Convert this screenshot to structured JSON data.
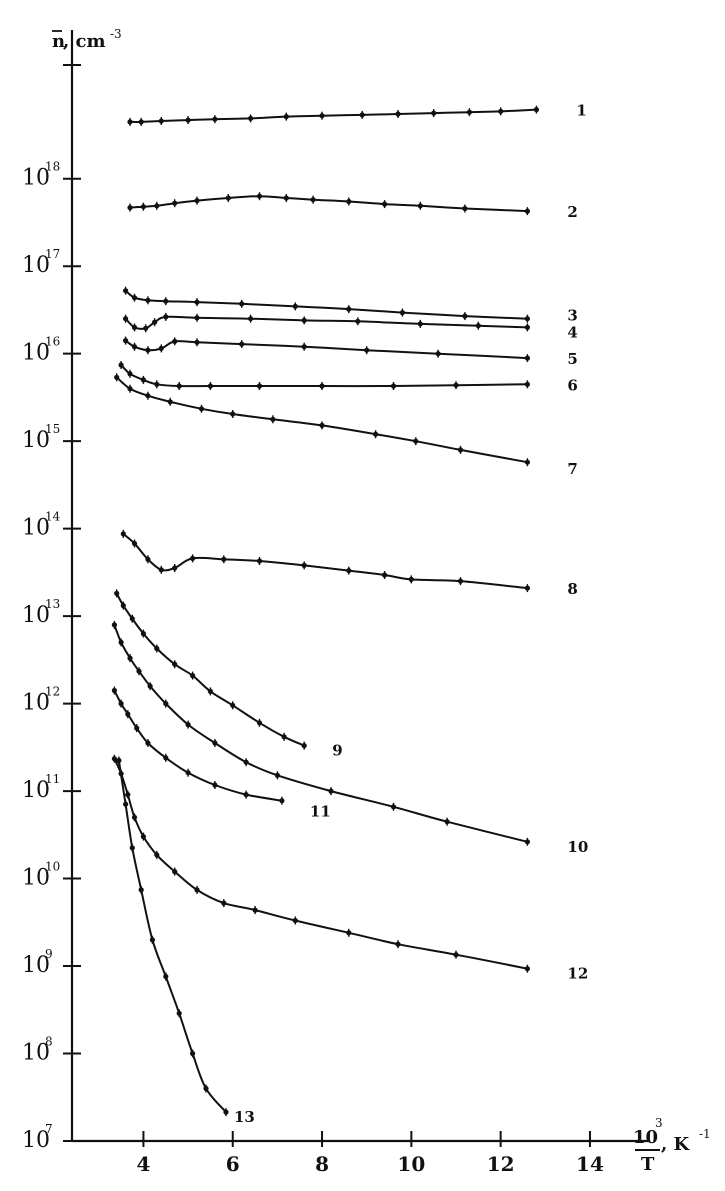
{
  "chart_data": {
    "type": "scatter",
    "title": "",
    "xlabel": {
      "num": "10",
      "num_exp": "3",
      "den": "T",
      "unit": ", K",
      "unit_exp": "-1"
    },
    "ylabel": {
      "var": "n",
      "unit": ", cm",
      "unit_exp": "-3"
    },
    "xlim": [
      2.4,
      15.3
    ],
    "ylim_log10": [
      7,
      19.7
    ],
    "y_scale": "log",
    "x_ticks": [
      4,
      6,
      8,
      10,
      12,
      14
    ],
    "x_tick_labels": [
      "4",
      "6",
      "8",
      "10",
      "12",
      "14"
    ],
    "y_tick_labels": [
      {
        "exp": 7,
        "base": "10",
        "sup": "7"
      },
      {
        "exp": 8,
        "base": "10",
        "sup": "8"
      },
      {
        "exp": 9,
        "base": "10",
        "sup": "9"
      },
      {
        "exp": 10,
        "base": "10",
        "sup": "10"
      },
      {
        "exp": 11,
        "base": "10",
        "sup": "11"
      },
      {
        "exp": 12,
        "base": "10",
        "sup": "12"
      },
      {
        "exp": 13,
        "base": "10",
        "sup": "13"
      },
      {
        "exp": 14,
        "base": "10",
        "sup": "14"
      },
      {
        "exp": 15,
        "base": "10",
        "sup": "15"
      },
      {
        "exp": 16,
        "base": "10",
        "sup": "16"
      },
      {
        "exp": 17,
        "base": "10",
        "sup": "17"
      },
      {
        "exp": 18,
        "base": "10",
        "sup": "18"
      }
    ],
    "series": [
      {
        "label": "1",
        "points": [
          [
            3.7,
            18.65
          ],
          [
            3.95,
            18.65
          ],
          [
            4.4,
            18.66
          ],
          [
            5.0,
            18.67
          ],
          [
            5.6,
            18.68
          ],
          [
            6.4,
            18.69
          ],
          [
            7.2,
            18.71
          ],
          [
            8.0,
            18.72
          ],
          [
            8.9,
            18.73
          ],
          [
            9.7,
            18.74
          ],
          [
            10.5,
            18.75
          ],
          [
            11.3,
            18.76
          ],
          [
            12.0,
            18.77
          ],
          [
            12.8,
            18.79
          ]
        ]
      },
      {
        "label": "2",
        "points": [
          [
            3.7,
            17.67
          ],
          [
            4.0,
            17.68
          ],
          [
            4.3,
            17.69
          ],
          [
            4.7,
            17.72
          ],
          [
            5.2,
            17.75
          ],
          [
            5.9,
            17.78
          ],
          [
            6.6,
            17.8
          ],
          [
            7.2,
            17.78
          ],
          [
            7.8,
            17.76
          ],
          [
            8.6,
            17.74
          ],
          [
            9.4,
            17.71
          ],
          [
            10.2,
            17.69
          ],
          [
            11.2,
            17.66
          ],
          [
            12.6,
            17.63
          ]
        ]
      },
      {
        "label": "3",
        "points": [
          [
            3.6,
            16.72
          ],
          [
            3.8,
            16.64
          ],
          [
            4.1,
            16.61
          ],
          [
            4.5,
            16.6
          ],
          [
            5.2,
            16.59
          ],
          [
            6.2,
            16.57
          ],
          [
            7.4,
            16.54
          ],
          [
            8.6,
            16.51
          ],
          [
            9.8,
            16.47
          ],
          [
            11.2,
            16.43
          ],
          [
            12.6,
            16.4
          ]
        ]
      },
      {
        "label": "4",
        "points": [
          [
            3.6,
            16.4
          ],
          [
            3.8,
            16.3
          ],
          [
            4.05,
            16.29
          ],
          [
            4.25,
            16.36
          ],
          [
            4.5,
            16.42
          ],
          [
            5.2,
            16.41
          ],
          [
            6.4,
            16.4
          ],
          [
            7.6,
            16.38
          ],
          [
            8.8,
            16.37
          ],
          [
            10.2,
            16.34
          ],
          [
            11.5,
            16.32
          ],
          [
            12.6,
            16.3
          ]
        ]
      },
      {
        "label": "5",
        "points": [
          [
            3.6,
            16.15
          ],
          [
            3.8,
            16.08
          ],
          [
            4.1,
            16.04
          ],
          [
            4.4,
            16.06
          ],
          [
            4.7,
            16.14
          ],
          [
            5.2,
            16.13
          ],
          [
            6.2,
            16.11
          ],
          [
            7.6,
            16.08
          ],
          [
            9.0,
            16.04
          ],
          [
            10.6,
            16.0
          ],
          [
            12.6,
            15.95
          ]
        ]
      },
      {
        "label": "6",
        "points": [
          [
            3.5,
            15.87
          ],
          [
            3.7,
            15.77
          ],
          [
            4.0,
            15.7
          ],
          [
            4.3,
            15.65
          ],
          [
            4.8,
            15.63
          ],
          [
            5.5,
            15.63
          ],
          [
            6.6,
            15.63
          ],
          [
            8.0,
            15.63
          ],
          [
            9.6,
            15.63
          ],
          [
            11.0,
            15.64
          ],
          [
            12.6,
            15.65
          ]
        ]
      },
      {
        "label": "7",
        "points": [
          [
            3.4,
            15.73
          ],
          [
            3.7,
            15.6
          ],
          [
            4.1,
            15.52
          ],
          [
            4.6,
            15.45
          ],
          [
            5.3,
            15.37
          ],
          [
            6.0,
            15.31
          ],
          [
            6.9,
            15.25
          ],
          [
            8.0,
            15.18
          ],
          [
            9.2,
            15.08
          ],
          [
            10.1,
            15.0
          ],
          [
            11.1,
            14.9
          ],
          [
            12.6,
            14.76
          ]
        ]
      },
      {
        "label": "8",
        "points": [
          [
            3.55,
            13.94
          ],
          [
            3.8,
            13.83
          ],
          [
            4.1,
            13.65
          ],
          [
            4.4,
            13.53
          ],
          [
            4.7,
            13.55
          ],
          [
            5.1,
            13.66
          ],
          [
            5.8,
            13.65
          ],
          [
            6.6,
            13.63
          ],
          [
            7.6,
            13.58
          ],
          [
            8.6,
            13.52
          ],
          [
            9.4,
            13.47
          ],
          [
            10.0,
            13.42
          ],
          [
            11.1,
            13.4
          ],
          [
            12.6,
            13.32
          ]
        ]
      },
      {
        "label": "9",
        "points": [
          [
            3.4,
            13.26
          ],
          [
            3.55,
            13.12
          ],
          [
            3.75,
            12.97
          ],
          [
            4.0,
            12.8
          ],
          [
            4.3,
            12.63
          ],
          [
            4.7,
            12.45
          ],
          [
            5.1,
            12.32
          ],
          [
            5.5,
            12.14
          ],
          [
            6.0,
            11.98
          ],
          [
            6.6,
            11.78
          ],
          [
            7.15,
            11.62
          ],
          [
            7.6,
            11.52
          ]
        ]
      },
      {
        "label": "10",
        "points": [
          [
            3.35,
            12.9
          ],
          [
            3.5,
            12.7
          ],
          [
            3.7,
            12.52
          ],
          [
            3.9,
            12.37
          ],
          [
            4.15,
            12.2
          ],
          [
            4.5,
            12.0
          ],
          [
            5.0,
            11.76
          ],
          [
            5.6,
            11.55
          ],
          [
            6.3,
            11.33
          ],
          [
            7.0,
            11.18
          ],
          [
            8.2,
            11.0
          ],
          [
            9.6,
            10.82
          ],
          [
            10.8,
            10.65
          ],
          [
            12.6,
            10.42
          ]
        ]
      },
      {
        "label": "11",
        "points": [
          [
            3.35,
            12.15
          ],
          [
            3.5,
            12.0
          ],
          [
            3.65,
            11.88
          ],
          [
            3.85,
            11.72
          ],
          [
            4.1,
            11.55
          ],
          [
            4.5,
            11.38
          ],
          [
            5.0,
            11.21
          ],
          [
            5.6,
            11.07
          ],
          [
            6.3,
            10.96
          ],
          [
            7.1,
            10.89
          ]
        ]
      },
      {
        "label": "12",
        "points": [
          [
            3.35,
            11.37
          ],
          [
            3.5,
            11.2
          ],
          [
            3.65,
            10.96
          ],
          [
            3.8,
            10.7
          ],
          [
            4.0,
            10.48
          ],
          [
            4.3,
            10.27
          ],
          [
            4.7,
            10.08
          ],
          [
            5.2,
            9.87
          ],
          [
            5.8,
            9.72
          ],
          [
            6.5,
            9.64
          ],
          [
            7.4,
            9.52
          ],
          [
            8.6,
            9.38
          ],
          [
            9.7,
            9.25
          ],
          [
            11.0,
            9.13
          ],
          [
            12.6,
            8.97
          ]
        ]
      },
      {
        "label": "13",
        "points": [
          [
            3.45,
            11.35
          ],
          [
            3.6,
            10.85
          ],
          [
            3.75,
            10.35
          ],
          [
            3.95,
            9.87
          ],
          [
            4.2,
            9.3
          ],
          [
            4.5,
            8.88
          ],
          [
            4.8,
            8.46
          ],
          [
            5.1,
            8.0
          ],
          [
            5.4,
            7.6
          ],
          [
            5.85,
            7.33
          ]
        ]
      }
    ]
  }
}
